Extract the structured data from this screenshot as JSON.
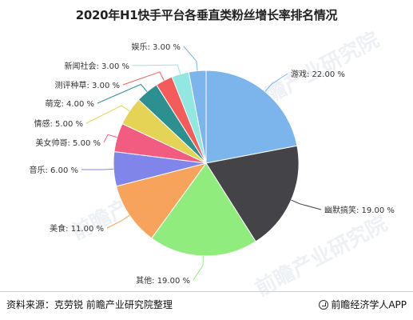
{
  "title": "2020年H1快手平台各垂直类粉丝增长率排名情况",
  "chart_data": {
    "type": "pie",
    "title": "2020年H1快手平台各垂直类粉丝增长率排名情况",
    "slices": [
      {
        "label": "游戏: 22.00 %",
        "value": 22,
        "color": "#7cb5ec"
      },
      {
        "label": "幽默搞笑: 19.00 %",
        "value": 19,
        "color": "#434348"
      },
      {
        "label": "其他: 19.00 %",
        "value": 19,
        "color": "#90ed7d"
      },
      {
        "label": "美食: 11.00 %",
        "value": 11,
        "color": "#f7a35c"
      },
      {
        "label": "音乐: 6.00 %",
        "value": 6,
        "color": "#8085e9"
      },
      {
        "label": "美女帅哥: 5.00 %",
        "value": 5,
        "color": "#f15c80"
      },
      {
        "label": "情感: 5.00 %",
        "value": 5,
        "color": "#e4d354"
      },
      {
        "label": "萌宠: 4.00 %",
        "value": 4,
        "color": "#2b908f"
      },
      {
        "label": "测评种草: 3.00 %",
        "value": 3,
        "color": "#f45b5b"
      },
      {
        "label": "新闻社会: 3.00 %",
        "value": 3,
        "color": "#91e8e1"
      },
      {
        "label": "娱乐: 3.00 %",
        "value": 3,
        "color": "#7cb5ec"
      }
    ]
  },
  "footer": {
    "source": "资料来源：克劳锐 前瞻产业研究院整理",
    "brand": "前瞻经济学人APP"
  },
  "watermark": "前瞻产业研究院"
}
